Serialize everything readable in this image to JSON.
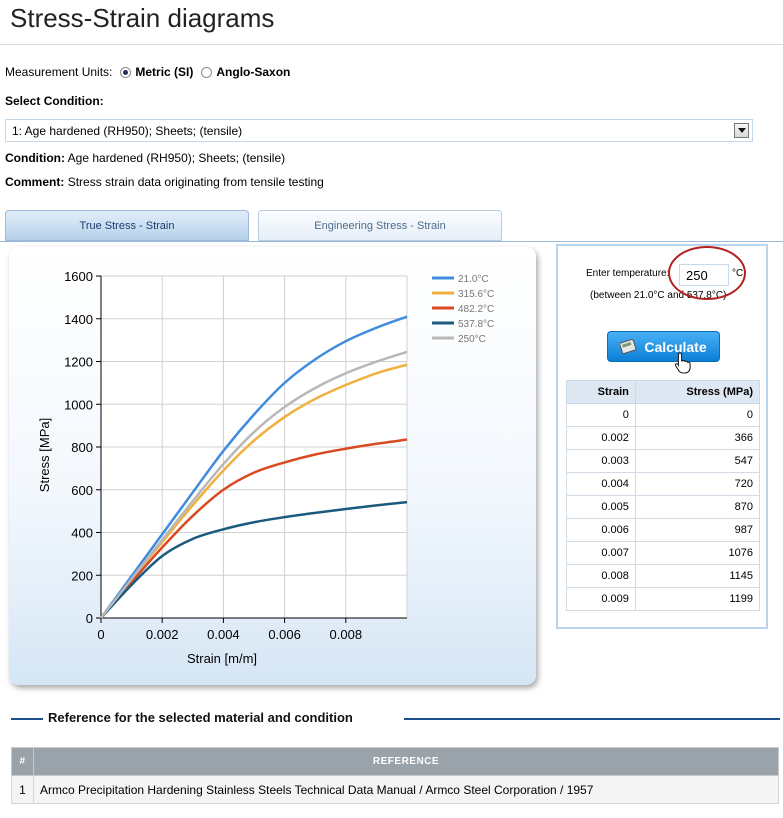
{
  "page": {
    "title": "Stress-Strain diagrams"
  },
  "units": {
    "label": "Measurement Units:",
    "options": [
      {
        "label": "Metric (SI)",
        "selected": true
      },
      {
        "label": "Anglo-Saxon",
        "selected": false
      }
    ]
  },
  "condition_select": {
    "label": "Select Condition:",
    "value": "1: Age hardened (RH950); Sheets; (tensile)"
  },
  "condition": {
    "label": "Condition:",
    "value": "Age hardened (RH950); Sheets; (tensile)"
  },
  "comment": {
    "label": "Comment:",
    "value": "Stress strain data originating from tensile testing"
  },
  "tabs": [
    {
      "label": "True Stress - Strain",
      "active": true
    },
    {
      "label": "Engineering Stress - Strain",
      "active": false
    }
  ],
  "temperature": {
    "label": "Enter temperature:",
    "value": "250",
    "unit": "°C",
    "range_text": "(between 21.0°C and 537.8°C)"
  },
  "calculate_button": {
    "label": "Calculate",
    "icon": "calculator-icon"
  },
  "result_table": {
    "headers": [
      "Strain",
      "Stress (MPa)"
    ],
    "rows": [
      [
        "0",
        "0"
      ],
      [
        "0.002",
        "366"
      ],
      [
        "0.003",
        "547"
      ],
      [
        "0.004",
        "720"
      ],
      [
        "0.005",
        "870"
      ],
      [
        "0.006",
        "987"
      ],
      [
        "0.007",
        "1076"
      ],
      [
        "0.008",
        "1145"
      ],
      [
        "0.009",
        "1199"
      ]
    ]
  },
  "reference": {
    "heading": "Reference for the selected material and condition",
    "headers": [
      "#",
      "REFERENCE"
    ],
    "rows": [
      [
        "1",
        "Armco Precipitation Hardening Stainless Steels Technical Data Manual / Armco Steel Corporation / 1957"
      ]
    ]
  },
  "colors": {
    "accent": "#0b7fd6",
    "rule": "#1d4f8a",
    "highlight_circle": "#b22222"
  },
  "chart_data": {
    "type": "line",
    "xlabel": "Strain [m/m]",
    "ylabel": "Stress [MPa]",
    "xlim": [
      0,
      0.01
    ],
    "ylim": [
      0,
      1600
    ],
    "xticks": [
      "0",
      "0.002",
      "0.004",
      "0.006",
      "0.008"
    ],
    "yticks": [
      "0",
      "200",
      "400",
      "600",
      "800",
      "1000",
      "1200",
      "1400",
      "1600"
    ],
    "grid": true,
    "legend_position": "top-right",
    "series": [
      {
        "name": "21.0°C",
        "color": "#3f8be0",
        "x": [
          0,
          0.001,
          0.002,
          0.003,
          0.004,
          0.005,
          0.006,
          0.007,
          0.008,
          0.009,
          0.01
        ],
        "y": [
          0,
          196,
          392,
          588,
          782,
          952,
          1100,
          1210,
          1295,
          1358,
          1410
        ]
      },
      {
        "name": "315.6°C",
        "color": "#f0b040",
        "x": [
          0,
          0.001,
          0.002,
          0.003,
          0.004,
          0.005,
          0.006,
          0.007,
          0.008,
          0.009,
          0.01
        ],
        "y": [
          0,
          180,
          355,
          528,
          690,
          830,
          940,
          1025,
          1090,
          1145,
          1185
        ]
      },
      {
        "name": "482.2°C",
        "color": "#d84a20",
        "x": [
          0,
          0.001,
          0.002,
          0.003,
          0.004,
          0.005,
          0.006,
          0.007,
          0.008,
          0.009,
          0.01
        ],
        "y": [
          0,
          168,
          330,
          478,
          600,
          680,
          728,
          765,
          792,
          815,
          835
        ]
      },
      {
        "name": "537.8°C",
        "color": "#1a5a7e",
        "x": [
          0,
          0.001,
          0.002,
          0.003,
          0.004,
          0.005,
          0.006,
          0.007,
          0.008,
          0.009,
          0.01
        ],
        "y": [
          0,
          155,
          290,
          370,
          415,
          448,
          472,
          492,
          510,
          527,
          542
        ]
      },
      {
        "name": "250°C",
        "color": "#b8b8b8",
        "x": [
          0,
          0.001,
          0.002,
          0.003,
          0.004,
          0.005,
          0.006,
          0.007,
          0.008,
          0.009,
          0.01
        ],
        "y": [
          0,
          183,
          366,
          547,
          720,
          870,
          987,
          1076,
          1145,
          1199,
          1245
        ]
      }
    ]
  }
}
